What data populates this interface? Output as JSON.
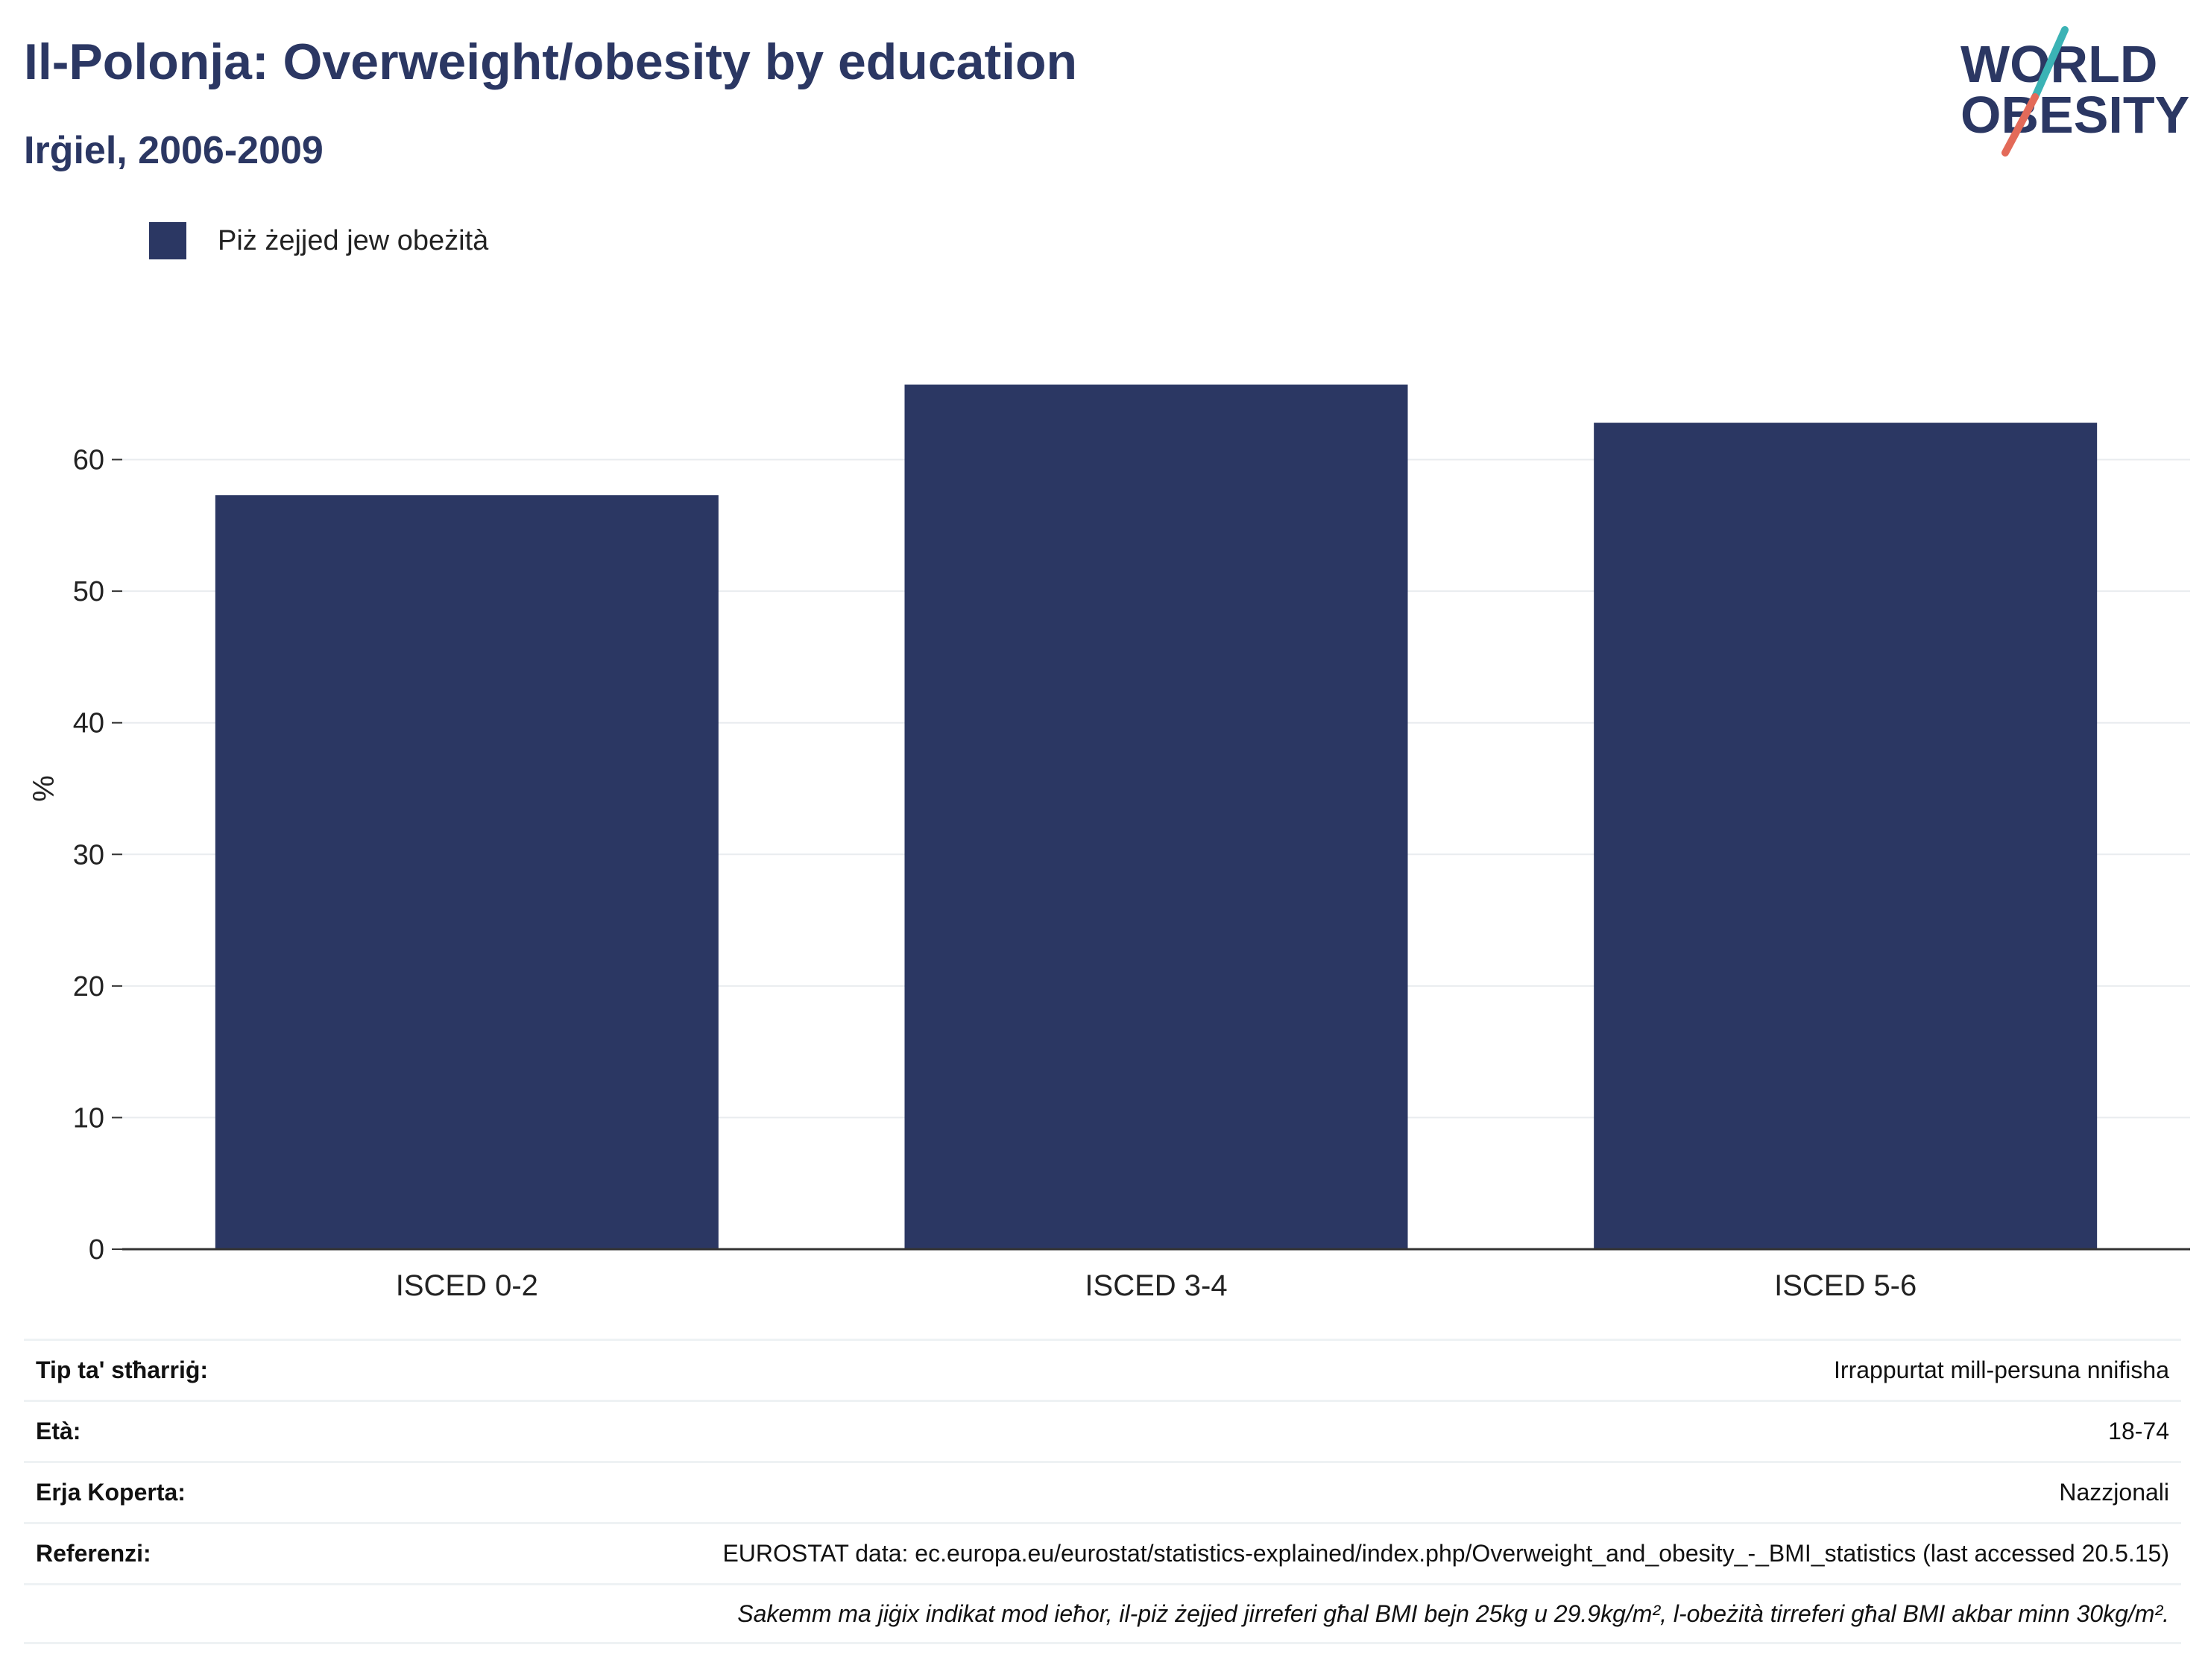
{
  "header": {
    "title": "Il-Polonja: Overweight/obesity by education",
    "subtitle": "Irġiel, 2006-2009"
  },
  "logo": {
    "line1": "WORLD",
    "line2": "OBESITY",
    "accent_teal": "#3bb3b5",
    "accent_red": "#e36a59"
  },
  "colors": {
    "bar": "#2b3763",
    "grid": "#e9ecef",
    "axis": "#333333"
  },
  "chart_data": {
    "type": "bar",
    "categories": [
      "ISCED 0-2",
      "ISCED 3-4",
      "ISCED 5-6"
    ],
    "series": [
      {
        "name": "Piż żejjed jew obeżità",
        "values": [
          57.3,
          65.7,
          62.8
        ]
      }
    ],
    "ylabel": "%",
    "ylim": [
      0,
      70
    ],
    "yticks": [
      0,
      10,
      20,
      30,
      40,
      50,
      60
    ],
    "grid": true,
    "legend": "top-left"
  },
  "info": {
    "rows": [
      {
        "key": "Tip ta' stħarriġ:",
        "value": "Irrappurtat mill-persuna nnifisha"
      },
      {
        "key": "Età:",
        "value": "18-74"
      },
      {
        "key": "Erja Koperta:",
        "value": "Nazzjonali"
      },
      {
        "key": "Referenzi:",
        "value": "EUROSTAT data: ec.europa.eu/eurostat/statistics-explained/index.php/Overweight_and_obesity_-_BMI_statistics (last accessed 20.5.15)"
      },
      {
        "key": "",
        "value": "Sakemm ma jiġix indikat mod ieħor, il-piż żejjed jirreferi għal BMI bejn 25kg u 29.9kg/m², l-obeżità tirreferi għal BMI akbar minn 30kg/m²."
      }
    ]
  }
}
